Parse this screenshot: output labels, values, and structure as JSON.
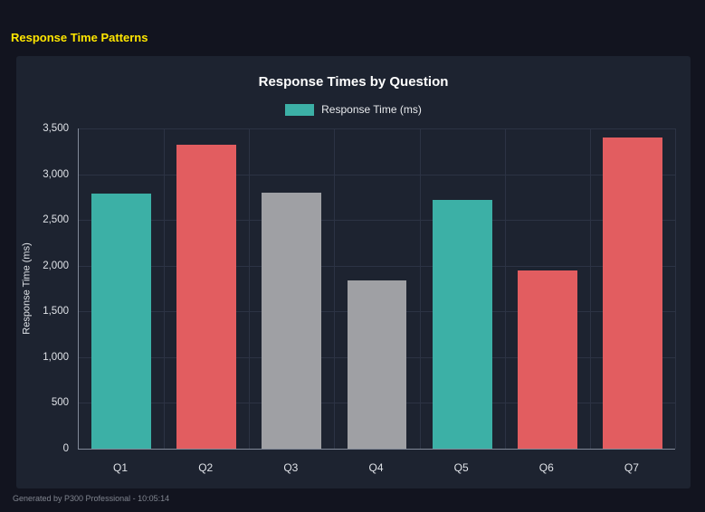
{
  "page": {
    "title": "Response Time Patterns",
    "footer": "Generated by P300 Professional - 10:05:14"
  },
  "colors": {
    "heading_yellow": "#ffe600",
    "teal": "#3cb0a6",
    "red": "#e25d60",
    "gray": "#9fa0a4"
  },
  "chart_data": {
    "type": "bar",
    "title": "Response Times by Question",
    "legend": [
      {
        "label": "Response Time (ms)",
        "color": "#3cb0a6"
      }
    ],
    "legend_position": "top",
    "categories": [
      "Q1",
      "Q2",
      "Q3",
      "Q4",
      "Q5",
      "Q6",
      "Q7"
    ],
    "values": [
      2790,
      3320,
      2800,
      1840,
      2720,
      1950,
      3400
    ],
    "bar_colors": [
      "#3cb0a6",
      "#e25d60",
      "#9fa0a4",
      "#9fa0a4",
      "#3cb0a6",
      "#e25d60",
      "#e25d60"
    ],
    "xlabel": "",
    "ylabel": "Response Time (ms)",
    "ylim": [
      0,
      3500
    ],
    "ytick_step": 500,
    "yticks": [
      "0",
      "500",
      "1,000",
      "1,500",
      "2,000",
      "2,500",
      "3,000",
      "3,500"
    ],
    "grid": true
  }
}
